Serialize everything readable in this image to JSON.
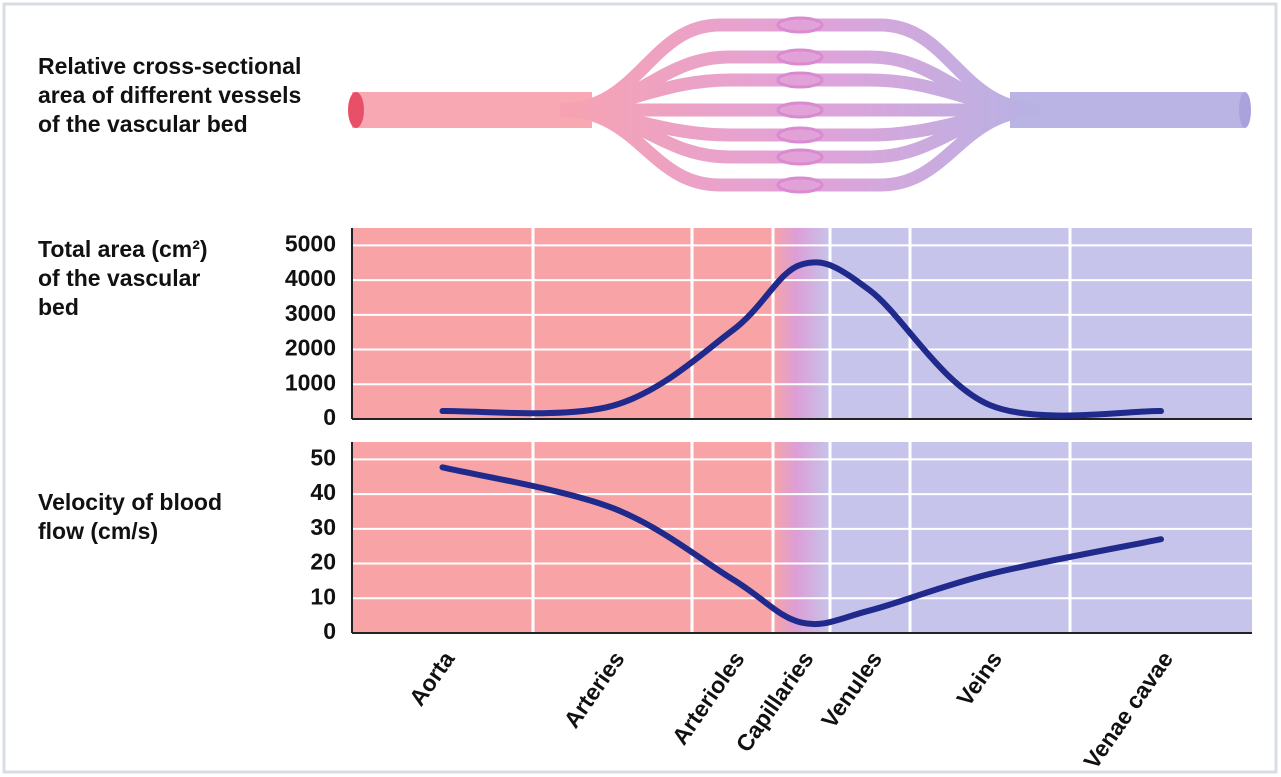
{
  "caption": "Relative cross-sectional area of different vessels of the vascular bed",
  "chart_data": [
    {
      "type": "line",
      "ylabel": "Total area (cm²) of the vascular bed",
      "series": [
        {
          "color": "#1f2a8c",
          "values": [
            230,
            380,
            2550,
            4450,
            3700,
            400,
            230
          ]
        }
      ],
      "ylim": [
        0,
        5500
      ],
      "yticks": [
        0,
        1000,
        2000,
        3000,
        4000,
        5000
      ],
      "grid": true
    },
    {
      "type": "line",
      "ylabel": "Velocity of blood flow (cm/s)",
      "categories": [
        "Aorta",
        "Arteries",
        "Arterioles",
        "Capillaries",
        "Venules",
        "Veins",
        "Venae cavae"
      ],
      "series": [
        {
          "color": "#1f2a8c",
          "values": [
            47.7,
            36,
            15.5,
            3,
            6.5,
            17,
            27
          ]
        }
      ],
      "ylim": [
        0,
        55
      ],
      "yticks": [
        0,
        10,
        20,
        30,
        40,
        50
      ],
      "grid": true
    }
  ]
}
